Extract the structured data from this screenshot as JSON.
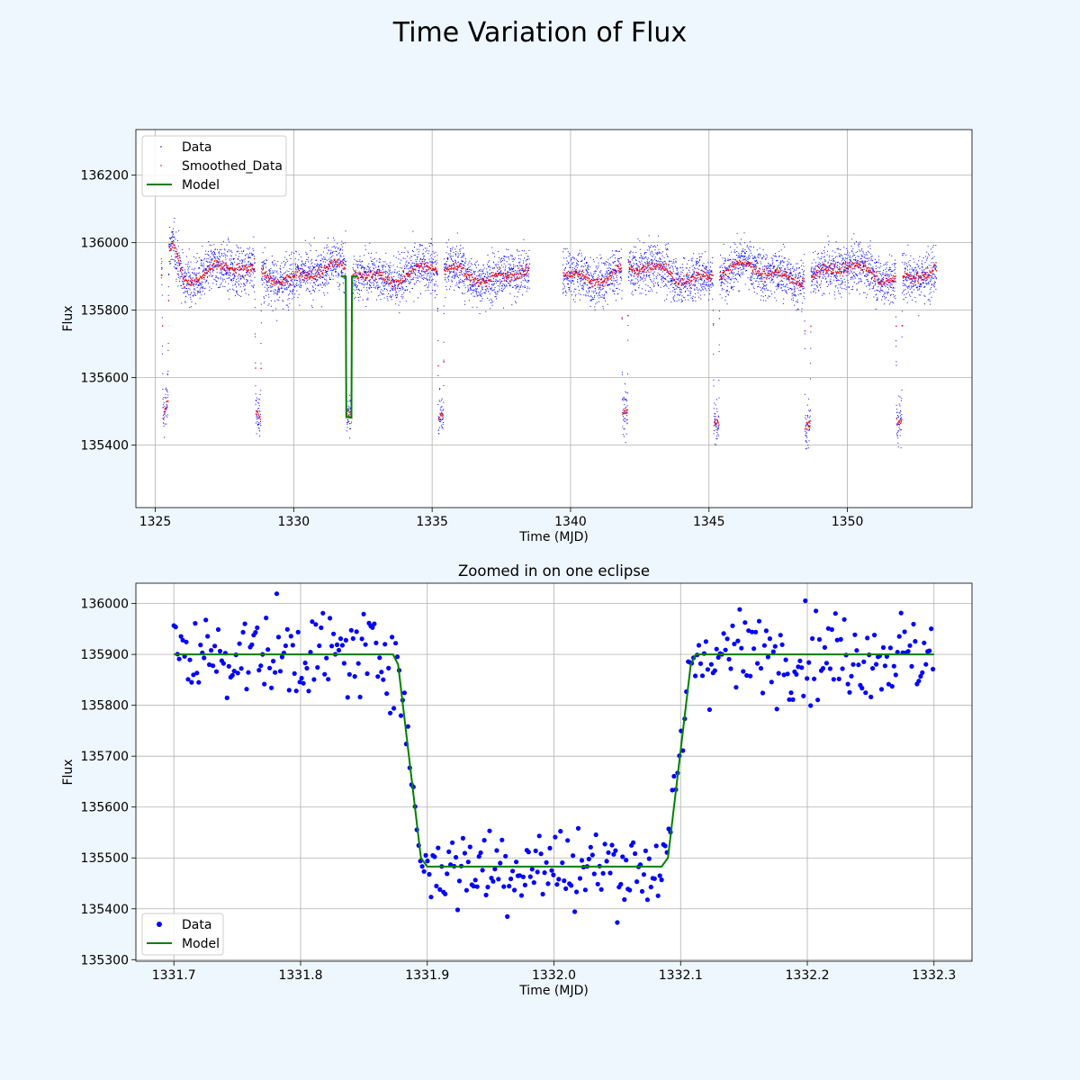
{
  "figure": {
    "title": "Time Variation of Flux",
    "background": "#eef6fe"
  },
  "chart_data": [
    {
      "type": "scatter",
      "title": "",
      "xlabel": "Time (MJD)",
      "ylabel": "Flux",
      "xlim": [
        1324.3,
        1354.5
      ],
      "ylim": [
        135215,
        136335
      ],
      "xticks": [
        1325,
        1330,
        1335,
        1340,
        1345,
        1350
      ],
      "yticks": [
        135400,
        135600,
        135800,
        136000,
        136200
      ],
      "grid": true,
      "legend_position": "top-left",
      "legend": [
        "Data",
        "Smoothed_Data",
        "Model"
      ],
      "colors": {
        "data": "#0000ff",
        "smoothed": "#ff0000",
        "model": "#008000"
      },
      "data_range": [
        1325.2,
        1353.2
      ],
      "gaps": [
        [
          1338.5,
          1339.7
        ]
      ],
      "baseline_flux": 135910,
      "eclipse_depth_flux": 135480,
      "eclipse_centers": [
        1325.35,
        1328.7,
        1331.99,
        1335.3,
        1341.95,
        1345.25,
        1348.55,
        1351.85
      ],
      "model_segment": {
        "x_range": [
          1331.7,
          1332.3
        ],
        "baseline": 135900,
        "depth": 135483
      }
    },
    {
      "type": "scatter",
      "title": "Zoomed in on one eclipse",
      "xlabel": "Time (MJD)",
      "ylabel": "Flux",
      "xlim": [
        1331.67,
        1332.33
      ],
      "ylim": [
        135297,
        136040
      ],
      "xticks": [
        1331.7,
        1331.8,
        1331.9,
        1332.0,
        1332.1,
        1332.2,
        1332.3
      ],
      "yticks": [
        135300,
        135400,
        135500,
        135600,
        135700,
        135800,
        135900,
        136000
      ],
      "grid": true,
      "legend_position": "bottom-left",
      "legend": [
        "Data",
        "Model"
      ],
      "colors": {
        "data": "#0000ff",
        "model": "#008000"
      },
      "model": {
        "x": [
          1331.7,
          1331.873,
          1331.877,
          1331.895,
          1331.9,
          1332.085,
          1332.09,
          1332.108,
          1332.112,
          1332.3
        ],
        "y": [
          135900,
          135900,
          135880,
          135500,
          135483,
          135483,
          135500,
          135880,
          135900,
          135900
        ]
      }
    }
  ]
}
